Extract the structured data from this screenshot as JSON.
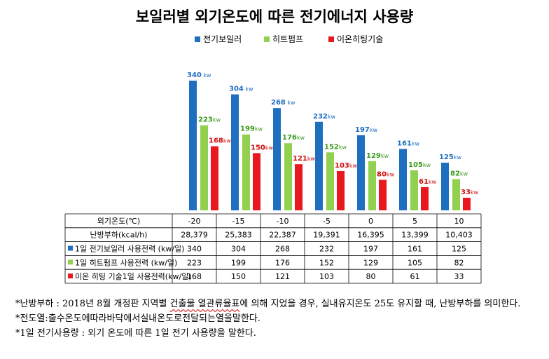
{
  "chart_data": {
    "type": "bar",
    "title": "보일러별 외기온도에 따른 전기에너지 사용량",
    "categories": [
      "-20",
      "-15",
      "-10",
      "-5",
      "0",
      "5",
      "10"
    ],
    "series": [
      {
        "name": "전기보일러",
        "color": "#1f6fc0",
        "label_color": "#1f6fc0",
        "values": [
          340,
          304,
          268,
          232,
          197,
          161,
          125
        ],
        "labels": [
          "340 kw",
          "304 kw",
          "268 kw",
          "232kw",
          "197kw",
          "161kw",
          "125kw"
        ]
      },
      {
        "name": "히트펌프",
        "color": "#92d050",
        "label_color": "#3a9a1e",
        "values": [
          223,
          199,
          176,
          152,
          129,
          105,
          82
        ],
        "labels": [
          "223kw",
          "199kw",
          "176kw",
          "152kw",
          "129kw",
          "105kw",
          "82kw"
        ]
      },
      {
        "name": "이온히팅기술",
        "color": "#e8181e",
        "label_color": "#cc1010",
        "values": [
          168,
          150,
          121,
          103,
          80,
          61,
          33
        ],
        "labels": [
          "168kw",
          "150kw",
          "121kw",
          "103kw",
          "80kw",
          "61kw",
          "33kw"
        ]
      }
    ],
    "ylim": [
      0,
      360
    ],
    "grid": false,
    "legend_position": "top",
    "table": {
      "rows": [
        {
          "label": "외기온도(℃)",
          "marker": null,
          "values": [
            "-20",
            "-15",
            "-10",
            "-5",
            "0",
            "5",
            "10"
          ]
        },
        {
          "label": "난방부하(kcal/h)",
          "marker": null,
          "values": [
            "28,379",
            "25,383",
            "22,387",
            "19,391",
            "16,395",
            "13,399",
            "10,403"
          ]
        },
        {
          "label": "1일 전기보일러 사용전력 (kw/일)",
          "marker": "#1f6fc0",
          "values": [
            "340",
            "304",
            "268",
            "232",
            "197",
            "161",
            "125"
          ]
        },
        {
          "label": "1일 히트펌프 사용전력 (kw/일)",
          "marker": "#92d050",
          "values": [
            "223",
            "199",
            "176",
            "152",
            "129",
            "105",
            "82"
          ]
        },
        {
          "label": "이온 히팅 기술1일 사용전력(kw/일)",
          "marker": "#e8181e",
          "values": [
            "168",
            "150",
            "121",
            "103",
            "80",
            "61",
            "33"
          ]
        }
      ]
    }
  },
  "notes": {
    "n1_pre": "*난방부하 : 2018년 8월 개정판 지역별 ",
    "n1_u": "건출물 열관류율표",
    "n1_post": "에 의해 지었을 경우, 실내유지온도 25도 유지할 때, 난방부하를 의미한다.",
    "n2": "*전도열:출수온도에따라바닥에서실내온도로전달되는열을말한다.",
    "n3": "*1일 전기사용량 : 외기 온도에 따른 1일 전기 사용량을 말한다."
  }
}
